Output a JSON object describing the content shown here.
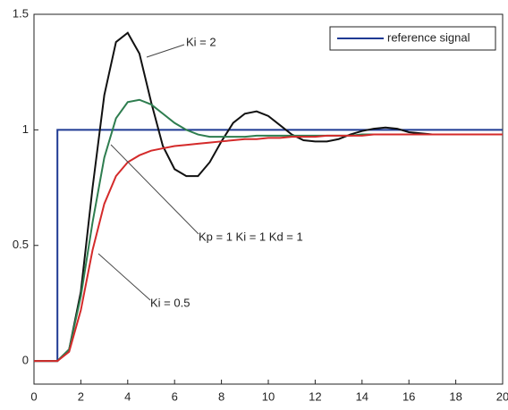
{
  "chart_data": {
    "type": "line",
    "x": [
      0,
      0.5,
      1,
      1.5,
      2,
      2.5,
      3,
      3.5,
      4,
      4.5,
      5,
      5.5,
      6,
      6.5,
      7,
      7.5,
      8,
      8.5,
      9,
      9.5,
      10,
      10.5,
      11,
      11.5,
      12,
      12.5,
      13,
      13.5,
      14,
      14.5,
      15,
      15.5,
      16,
      16.5,
      17,
      17.5,
      18,
      18.5,
      19,
      19.5,
      20
    ],
    "series": [
      {
        "name": "reference signal",
        "color": "#1f3a93",
        "x": [
          0,
          1,
          1,
          20
        ],
        "values": [
          0,
          0,
          1,
          1
        ]
      },
      {
        "color": "#111111",
        "values": [
          0,
          0,
          0,
          0.05,
          0.3,
          0.75,
          1.15,
          1.38,
          1.42,
          1.33,
          1.12,
          0.93,
          0.83,
          0.8,
          0.8,
          0.86,
          0.95,
          1.03,
          1.07,
          1.08,
          1.06,
          1.02,
          0.98,
          0.955,
          0.95,
          0.95,
          0.96,
          0.98,
          0.995,
          1.005,
          1.01,
          1.005,
          0.99,
          0.985,
          0.98,
          0.98,
          0.98,
          0.98,
          0.98,
          0.98,
          0.98
        ]
      },
      {
        "color": "#2e7d4f",
        "values": [
          0,
          0,
          0,
          0.05,
          0.28,
          0.6,
          0.88,
          1.05,
          1.12,
          1.13,
          1.11,
          1.07,
          1.03,
          1.0,
          0.98,
          0.97,
          0.97,
          0.97,
          0.97,
          0.975,
          0.975,
          0.975,
          0.975,
          0.975,
          0.975,
          0.975,
          0.975,
          0.975,
          0.98,
          0.98,
          0.98,
          0.98,
          0.98,
          0.98,
          0.98,
          0.98,
          0.98,
          0.98,
          0.98,
          0.98,
          0.98
        ]
      },
      {
        "color": "#d42a2a",
        "values": [
          0,
          0,
          0,
          0.04,
          0.22,
          0.48,
          0.68,
          0.8,
          0.86,
          0.89,
          0.91,
          0.92,
          0.93,
          0.935,
          0.94,
          0.945,
          0.95,
          0.955,
          0.96,
          0.96,
          0.965,
          0.965,
          0.97,
          0.97,
          0.97,
          0.975,
          0.975,
          0.975,
          0.975,
          0.98,
          0.98,
          0.98,
          0.98,
          0.98,
          0.98,
          0.98,
          0.98,
          0.98,
          0.98,
          0.98,
          0.98
        ]
      }
    ],
    "annotations": [
      "Ki = 2",
      "Kp = 1  Ki = 1  Kd = 1",
      "Ki = 0.5"
    ],
    "xlim": [
      0,
      20
    ],
    "xticks": [
      0,
      2,
      4,
      6,
      8,
      10,
      12,
      14,
      16,
      18,
      20
    ],
    "ylim": [
      -0.1,
      1.5
    ],
    "yticks": [
      0,
      0.5,
      1,
      1.5
    ],
    "grid": false,
    "legend": "upper right"
  }
}
